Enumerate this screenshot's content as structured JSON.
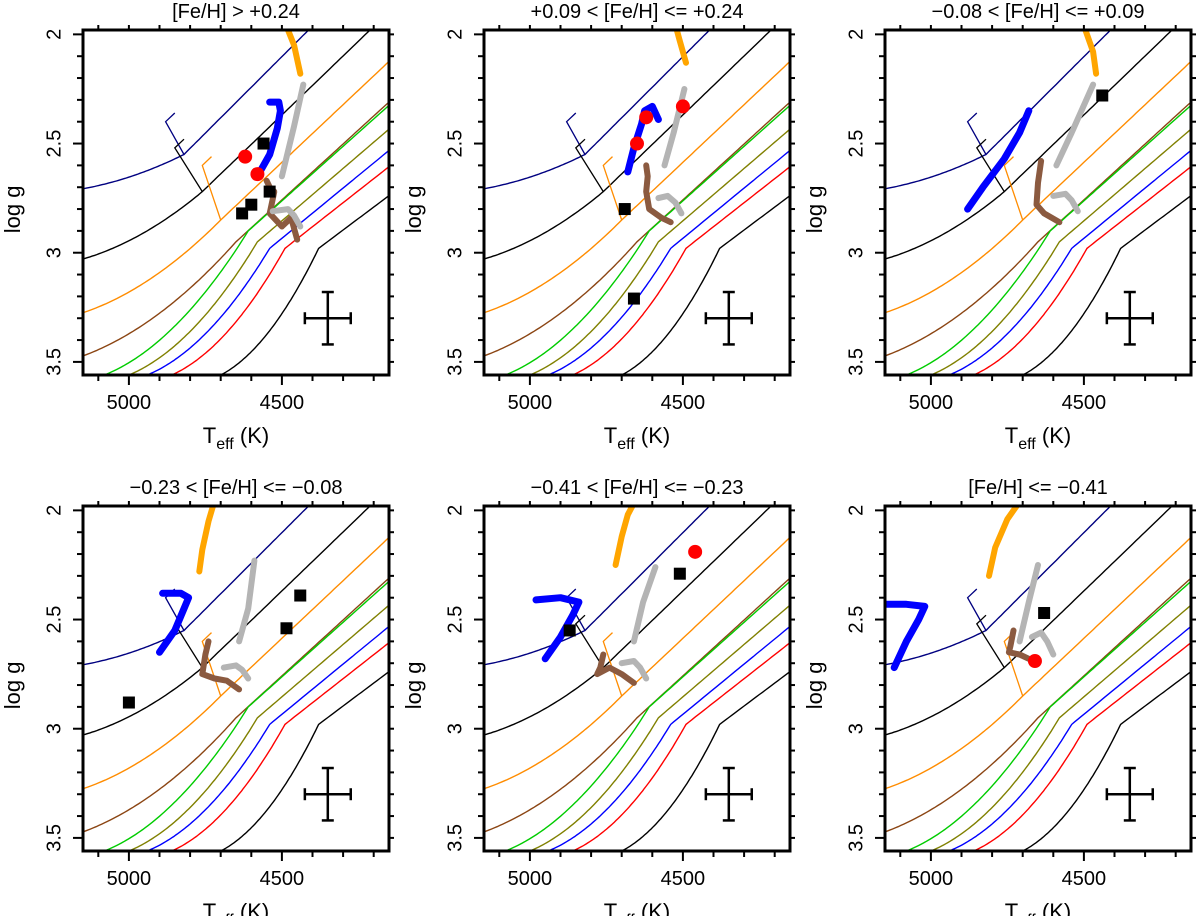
{
  "chart_data": {
    "type": "line",
    "xlabel": "T",
    "xlabel_sub": "eff",
    "xlabel_unit": " (K)",
    "ylabel": "log g",
    "xlim": [
      5150,
      4150
    ],
    "ylim": [
      3.56,
      1.98
    ],
    "xticks": [
      5000,
      4500
    ],
    "yticks": [
      2,
      2.5,
      3,
      3.5
    ],
    "colors": {
      "black": "#000000",
      "navy": "#000080",
      "orange": "#ff8c00",
      "brown": "#8b4513",
      "green": "#00cc00",
      "olive": "#808000",
      "blue": "#0000ff",
      "red": "#ff0000",
      "thick_orange": "#ffa500",
      "thick_blue": "#0000ff",
      "thick_grey": "#b4b4b4",
      "thick_brown": "#8b5a40",
      "obs_square": "#000000",
      "obs_circle": "#ff0000"
    },
    "error_bar": {
      "x": 4350,
      "y": 3.3,
      "dx": 75,
      "dy": 0.12
    },
    "panels": [
      {
        "title": "[Fe/H] > +0.24",
        "squares": [
          [
            4630,
            2.82
          ],
          [
            4600,
            2.78
          ],
          [
            4560,
            2.5
          ],
          [
            4540,
            2.72
          ]
        ],
        "circles": [
          [
            4620,
            2.56
          ],
          [
            4580,
            2.64
          ]
        ],
        "tracks": {
          "orange": [
            [
              4440,
              2.18
            ],
            [
              4460,
              2.05
            ],
            [
              4480,
              1.98
            ]
          ],
          "blue": [
            [
              4580,
              2.65
            ],
            [
              4540,
              2.55
            ],
            [
              4515,
              2.43
            ],
            [
              4505,
              2.35
            ],
            [
              4510,
              2.31
            ],
            [
              4540,
              2.31
            ]
          ],
          "grey": [
            [
              4500,
              2.65
            ],
            [
              4460,
              2.42
            ],
            [
              4430,
              2.23
            ]
          ],
          "brown": [
            [
              4550,
              2.67
            ],
            [
              4540,
              2.7
            ],
            [
              4525,
              2.72
            ],
            [
              4540,
              2.82
            ],
            [
              4500,
              2.88
            ],
            [
              4470,
              2.84
            ],
            [
              4450,
              2.94
            ]
          ],
          "grey2": [
            [
              4530,
              2.81
            ],
            [
              4480,
              2.8
            ],
            [
              4460,
              2.83
            ],
            [
              4440,
              2.88
            ]
          ]
        }
      },
      {
        "title": "+0.09 < [Fe/H] <= +0.24",
        "squares": [
          [
            4690,
            2.8
          ],
          [
            4660,
            3.21
          ]
        ],
        "circles": [
          [
            4650,
            2.5
          ],
          [
            4620,
            2.38
          ],
          [
            4500,
            2.33
          ]
        ],
        "tracks": {
          "orange": [
            [
              4490,
              2.13
            ],
            [
              4510,
              2.03
            ],
            [
              4520,
              1.98
            ]
          ],
          "blue": [
            [
              4680,
              2.63
            ],
            [
              4660,
              2.52
            ],
            [
              4635,
              2.41
            ],
            [
              4625,
              2.35
            ],
            [
              4600,
              2.33
            ],
            [
              4580,
              2.39
            ]
          ],
          "grey": [
            [
              4560,
              2.6
            ],
            [
              4530,
              2.45
            ],
            [
              4495,
              2.25
            ]
          ],
          "brown": [
            [
              4620,
              2.6
            ],
            [
              4615,
              2.65
            ],
            [
              4620,
              2.72
            ],
            [
              4610,
              2.8
            ],
            [
              4570,
              2.84
            ],
            [
              4540,
              2.86
            ]
          ],
          "grey2": [
            [
              4580,
              2.75
            ],
            [
              4550,
              2.74
            ],
            [
              4525,
              2.77
            ],
            [
              4505,
              2.82
            ]
          ]
        }
      },
      {
        "title": "−0.08 < [Fe/H] <= +0.09",
        "squares": [
          [
            4440,
            2.28
          ]
        ],
        "circles": [],
        "tracks": {
          "orange": [
            [
              4460,
              2.18
            ],
            [
              4470,
              2.08
            ],
            [
              4495,
              1.98
            ]
          ],
          "blue": [
            [
              4880,
              2.8
            ],
            [
              4830,
              2.7
            ],
            [
              4760,
              2.57
            ],
            [
              4710,
              2.45
            ],
            [
              4680,
              2.35
            ]
          ],
          "grey": [
            [
              4590,
              2.6
            ],
            [
              4540,
              2.45
            ],
            [
              4470,
              2.23
            ]
          ],
          "brown": [
            [
              4640,
              2.58
            ],
            [
              4650,
              2.68
            ],
            [
              4655,
              2.78
            ],
            [
              4630,
              2.82
            ],
            [
              4580,
              2.86
            ]
          ],
          "grey2": [
            [
              4600,
              2.74
            ],
            [
              4560,
              2.73
            ],
            [
              4540,
              2.76
            ],
            [
              4520,
              2.81
            ]
          ]
        }
      },
      {
        "title": "−0.23 < [Fe/H] <= −0.08",
        "squares": [
          [
            5000,
            2.88
          ],
          [
            4485,
            2.54
          ],
          [
            4440,
            2.39
          ]
        ],
        "circles": [],
        "tracks": {
          "orange": [
            [
              4770,
              2.28
            ],
            [
              4760,
              2.18
            ],
            [
              4740,
              2.05
            ],
            [
              4725,
              1.98
            ]
          ],
          "blue": [
            [
              4900,
              2.65
            ],
            [
              4850,
              2.55
            ],
            [
              4820,
              2.45
            ],
            [
              4805,
              2.4
            ],
            [
              4830,
              2.38
            ],
            [
              4890,
              2.38
            ]
          ],
          "grey": [
            [
              4640,
              2.6
            ],
            [
              4610,
              2.45
            ],
            [
              4590,
              2.23
            ]
          ],
          "brown": [
            [
              4740,
              2.6
            ],
            [
              4750,
              2.66
            ],
            [
              4760,
              2.75
            ],
            [
              4720,
              2.77
            ],
            [
              4680,
              2.78
            ],
            [
              4640,
              2.82
            ]
          ],
          "grey2": [
            [
              4690,
              2.72
            ],
            [
              4650,
              2.71
            ],
            [
              4630,
              2.73
            ],
            [
              4610,
              2.77
            ]
          ]
        }
      },
      {
        "title": "−0.41 < [Fe/H] <= −0.23",
        "squares": [
          [
            4870,
            2.55
          ],
          [
            4510,
            2.29
          ]
        ],
        "circles": [
          [
            4460,
            2.19
          ]
        ],
        "tracks": {
          "orange": [
            [
              4720,
              2.25
            ],
            [
              4700,
              2.12
            ],
            [
              4680,
              2.02
            ],
            [
              4665,
              1.98
            ]
          ],
          "blue": [
            [
              4950,
              2.68
            ],
            [
              4900,
              2.58
            ],
            [
              4860,
              2.48
            ],
            [
              4840,
              2.42
            ],
            [
              4900,
              2.4
            ],
            [
              4980,
              2.41
            ]
          ],
          "grey": [
            [
              4660,
              2.6
            ],
            [
              4630,
              2.42
            ],
            [
              4590,
              2.26
            ]
          ],
          "brown": [
            [
              4760,
              2.66
            ],
            [
              4770,
              2.72
            ],
            [
              4780,
              2.75
            ],
            [
              4740,
              2.72
            ],
            [
              4700,
              2.75
            ],
            [
              4660,
              2.79
            ]
          ],
          "grey2": [
            [
              4700,
              2.7
            ],
            [
              4660,
              2.69
            ],
            [
              4640,
              2.72
            ],
            [
              4620,
              2.77
            ]
          ]
        }
      },
      {
        "title": "[Fe/H] <= −0.41",
        "squares": [
          [
            4630,
            2.47
          ]
        ],
        "circles": [
          [
            4660,
            2.69
          ]
        ],
        "tracks": {
          "orange": [
            [
              4810,
              2.3
            ],
            [
              4790,
              2.17
            ],
            [
              4750,
              2.04
            ],
            [
              4720,
              1.98
            ]
          ],
          "blue": [
            [
              5120,
              2.72
            ],
            [
              5080,
              2.6
            ],
            [
              5040,
              2.5
            ],
            [
              5020,
              2.44
            ],
            [
              5080,
              2.43
            ],
            [
              5150,
              2.43
            ]
          ],
          "grey": [
            [
              4710,
              2.6
            ],
            [
              4680,
              2.42
            ],
            [
              4650,
              2.25
            ]
          ],
          "brown": [
            [
              4730,
              2.55
            ],
            [
              4740,
              2.62
            ],
            [
              4745,
              2.65
            ],
            [
              4710,
              2.66
            ],
            [
              4680,
              2.68
            ]
          ],
          "grey2": [
            [
              4670,
              2.58
            ],
            [
              4640,
              2.56
            ],
            [
              4620,
              2.6
            ],
            [
              4600,
              2.66
            ]
          ]
        }
      }
    ],
    "isochrones": [
      {
        "color": "navy",
        "T0": 5210,
        "g0": 2.72,
        "Tb": 4820,
        "gb": 2.55,
        "Tl": 4880,
        "gl": 2.4,
        "m": 0.0014
      },
      {
        "color": "black",
        "T0": 5210,
        "g0": 3.05,
        "Tb": 4760,
        "gb": 2.72,
        "Tl": 4850,
        "gl": 2.52,
        "m": 0.00135
      },
      {
        "color": "orange",
        "T0": 5210,
        "g0": 3.3,
        "Tb": 4700,
        "gb": 2.85,
        "Tl": 4760,
        "gl": 2.6,
        "m": 0.00132
      },
      {
        "color": "brown",
        "T0": 5210,
        "g0": 3.5,
        "Tb": 4650,
        "gb": 2.95,
        "m": 0.00128
      },
      {
        "color": "green",
        "T0": 5080,
        "g0": 3.56,
        "Tb": 4610,
        "gb": 2.9,
        "m": 0.00125
      },
      {
        "color": "olive",
        "T0": 5000,
        "g0": 3.56,
        "Tb": 4580,
        "gb": 2.95,
        "m": 0.0012
      },
      {
        "color": "blue",
        "T0": 4940,
        "g0": 3.56,
        "Tb": 4540,
        "gb": 2.98,
        "m": 0.00115
      },
      {
        "color": "red",
        "T0": 4860,
        "g0": 3.56,
        "Tb": 4490,
        "gb": 2.98,
        "m": 0.0011
      },
      {
        "color": "black",
        "T0": 4700,
        "g0": 3.56,
        "Tb": 4380,
        "gb": 2.98,
        "m": 0.00105
      }
    ]
  }
}
